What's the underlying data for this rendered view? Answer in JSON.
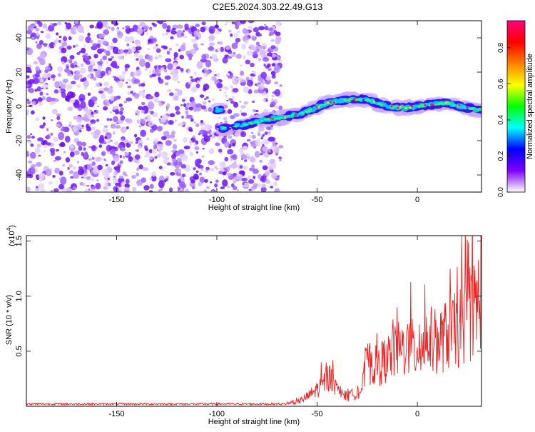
{
  "title": "C2E5.2024.303.22.49.G13",
  "chart_data": [
    {
      "type": "heatmap",
      "xlabel": "Height of straight line (km)",
      "ylabel": "Frequency (Hz)",
      "xlim": [
        -195,
        32
      ],
      "ylim": [
        -50,
        50
      ],
      "xticks": [
        -150,
        -100,
        -50,
        0
      ],
      "yticks": [
        -40,
        -20,
        0,
        20,
        40
      ],
      "colorbar": {
        "label": "Normalized spectral amplitude",
        "range": [
          0,
          0.95
        ],
        "ticks": [
          "0.0",
          "0.2",
          "0.4",
          "0.6",
          "0.8"
        ],
        "tick_values": [
          0,
          0.2,
          0.4,
          0.6,
          0.8
        ],
        "colors": [
          "#ffffff",
          "#7f00ff",
          "#0000ff",
          "#00ffff",
          "#00ff00",
          "#ffff00",
          "#ff8000",
          "#ff0000",
          "#ff0080"
        ]
      },
      "noise_region_x": [
        -195,
        -72
      ],
      "ridge": [
        {
          "x": -98,
          "y": -13
        },
        {
          "x": -88,
          "y": -11
        },
        {
          "x": -72,
          "y": -7
        },
        {
          "x": -65,
          "y": -6
        },
        {
          "x": -55,
          "y": -3
        },
        {
          "x": -45,
          "y": 2
        },
        {
          "x": -35,
          "y": 4
        },
        {
          "x": -25,
          "y": 4
        },
        {
          "x": -15,
          "y": 0
        },
        {
          "x": -5,
          "y": -1
        },
        {
          "x": 5,
          "y": 1
        },
        {
          "x": 15,
          "y": 2
        },
        {
          "x": 25,
          "y": -1
        },
        {
          "x": 32,
          "y": -2
        }
      ]
    },
    {
      "type": "line",
      "xlabel": "Height of straight line (km)",
      "ylabel": "SNR (10 * v/v)",
      "y_multiplier": "(x10",
      "y_multiplier_exp": "4",
      "xlim": [
        -195,
        32
      ],
      "ylim": [
        0,
        1.55
      ],
      "xticks": [
        -150,
        -100,
        -50,
        0
      ],
      "yticks": [
        0.5,
        1.0,
        1.5
      ],
      "ytick_labels": [
        "0.5",
        "1.0",
        "1.5"
      ],
      "color": "#ee2222",
      "envelope": [
        {
          "x": -195,
          "y": 0.02
        },
        {
          "x": -70,
          "y": 0.03
        },
        {
          "x": -60,
          "y": 0.05
        },
        {
          "x": -55,
          "y": 0.12
        },
        {
          "x": -48,
          "y": 0.25
        },
        {
          "x": -44,
          "y": 0.38
        },
        {
          "x": -40,
          "y": 0.2
        },
        {
          "x": -35,
          "y": 0.12
        },
        {
          "x": -28,
          "y": 0.2
        },
        {
          "x": -25,
          "y": 0.55
        },
        {
          "x": -20,
          "y": 0.5
        },
        {
          "x": -15,
          "y": 0.6
        },
        {
          "x": -10,
          "y": 0.7
        },
        {
          "x": -5,
          "y": 0.75
        },
        {
          "x": 0,
          "y": 0.7
        },
        {
          "x": 5,
          "y": 0.85
        },
        {
          "x": 10,
          "y": 0.8
        },
        {
          "x": 15,
          "y": 0.9
        },
        {
          "x": 20,
          "y": 0.95
        },
        {
          "x": 25,
          "y": 1.1
        },
        {
          "x": 30,
          "y": 1.3
        },
        {
          "x": 32,
          "y": 1.45
        }
      ]
    }
  ]
}
